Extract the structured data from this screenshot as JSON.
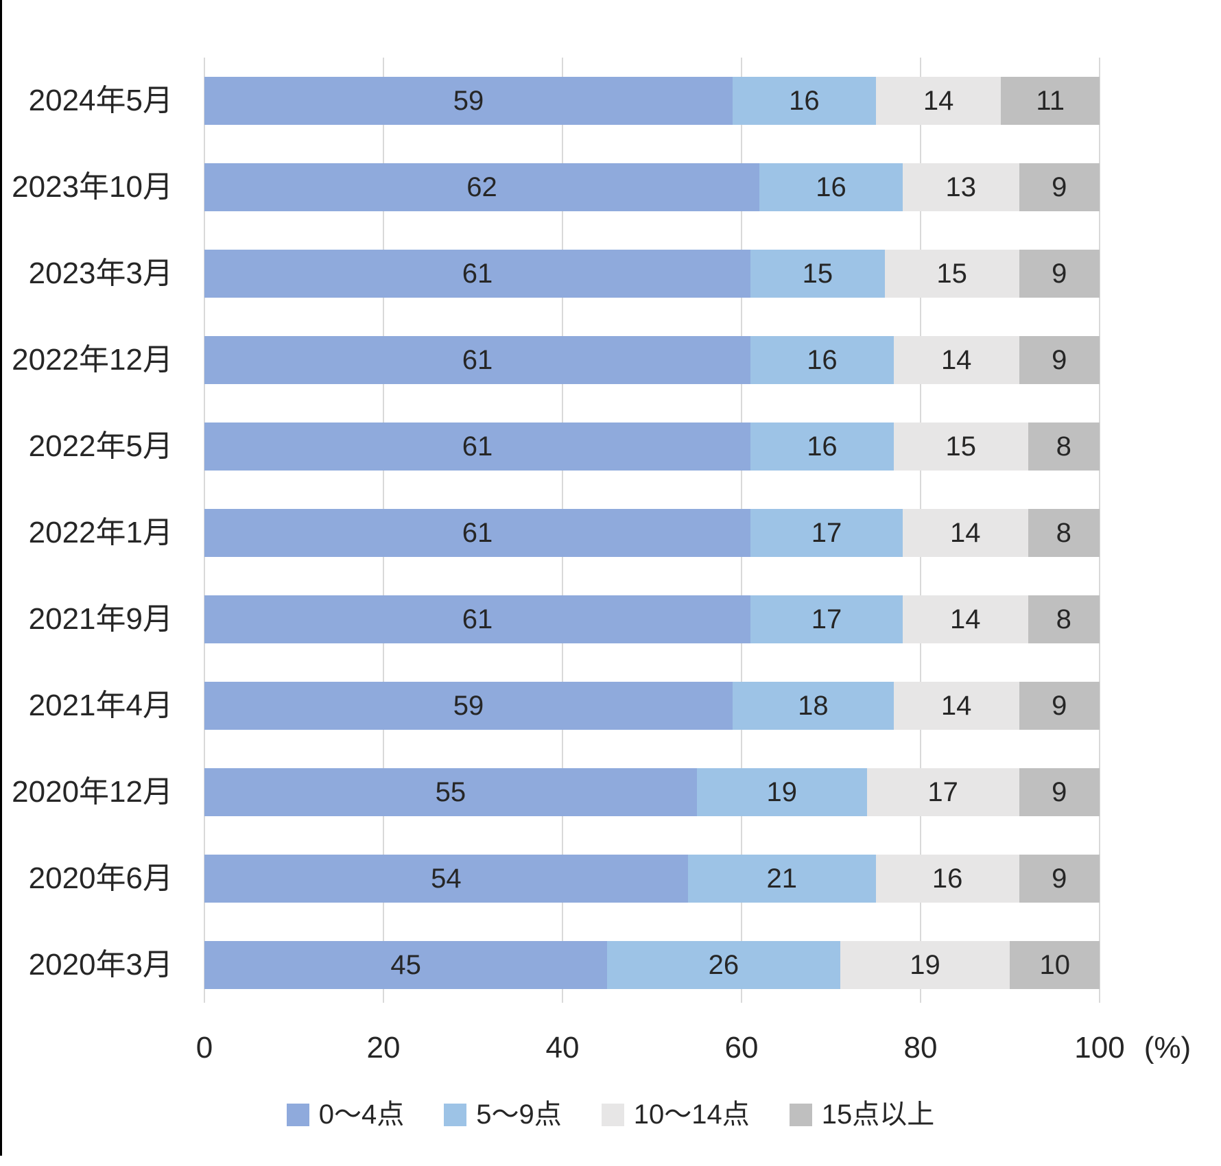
{
  "chart_data": {
    "type": "bar",
    "orientation": "horizontal",
    "stacked": true,
    "categories": [
      "2024年5月",
      "2023年10月",
      "2023年3月",
      "2022年12月",
      "2022年5月",
      "2022年1月",
      "2021年9月",
      "2021年4月",
      "2020年12月",
      "2020年6月",
      "2020年3月"
    ],
    "series": [
      {
        "name": "0〜4点",
        "color": "#8FAADC",
        "values": [
          59,
          62,
          61,
          61,
          61,
          61,
          61,
          59,
          55,
          54,
          45
        ]
      },
      {
        "name": "5〜9点",
        "color": "#9DC3E6",
        "values": [
          16,
          16,
          15,
          16,
          16,
          17,
          17,
          18,
          19,
          21,
          26
        ]
      },
      {
        "name": "10〜14点",
        "color": "#E7E6E6",
        "values": [
          14,
          13,
          15,
          14,
          15,
          14,
          14,
          14,
          17,
          16,
          19
        ]
      },
      {
        "name": "15点以上",
        "color": "#BFBFBF",
        "values": [
          11,
          9,
          9,
          9,
          8,
          8,
          8,
          9,
          9,
          9,
          10
        ]
      }
    ],
    "x_ticks": [
      "0",
      "20",
      "40",
      "60",
      "80",
      "100"
    ],
    "xlim": [
      0,
      100
    ],
    "xlabel_unit": "(%)",
    "title": "",
    "ylabel": "",
    "grid": true,
    "legend_position": "bottom"
  },
  "colors": {
    "gridline": "#D9D9D9",
    "text": "#262626",
    "page_border": "#000000",
    "background": "#FFFFFF"
  }
}
